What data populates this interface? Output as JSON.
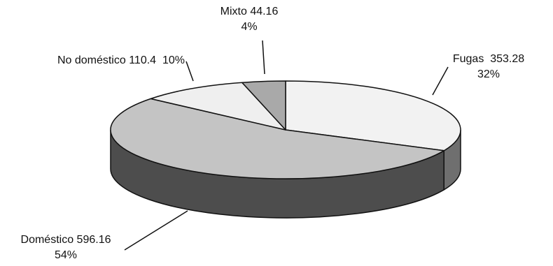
{
  "chart_data": {
    "type": "pie",
    "title": "",
    "categories": [
      "Fugas",
      "Doméstico",
      "No doméstico",
      "Mixto"
    ],
    "values": [
      353.28,
      596.16,
      110.4,
      44.16
    ],
    "percent": [
      32,
      54,
      10,
      4
    ],
    "colors": [
      "#f2f2f2",
      "#c4c4c4",
      "#efefef",
      "#a9a9a9"
    ],
    "side_colors": [
      "#6f6f6f",
      "#4d4d4d",
      "#6a6a6a",
      "#555555"
    ],
    "labels": [
      {
        "name": "Fugas",
        "value": "353.28",
        "pct": "32%"
      },
      {
        "name": "Doméstico",
        "value": "596.16",
        "pct": "54%"
      },
      {
        "name": "No doméstico",
        "value": "110.4",
        "pct": "10%"
      },
      {
        "name": "Mixto",
        "value": "44.16",
        "pct": "4%"
      }
    ],
    "legend": "none",
    "three_d": true
  }
}
